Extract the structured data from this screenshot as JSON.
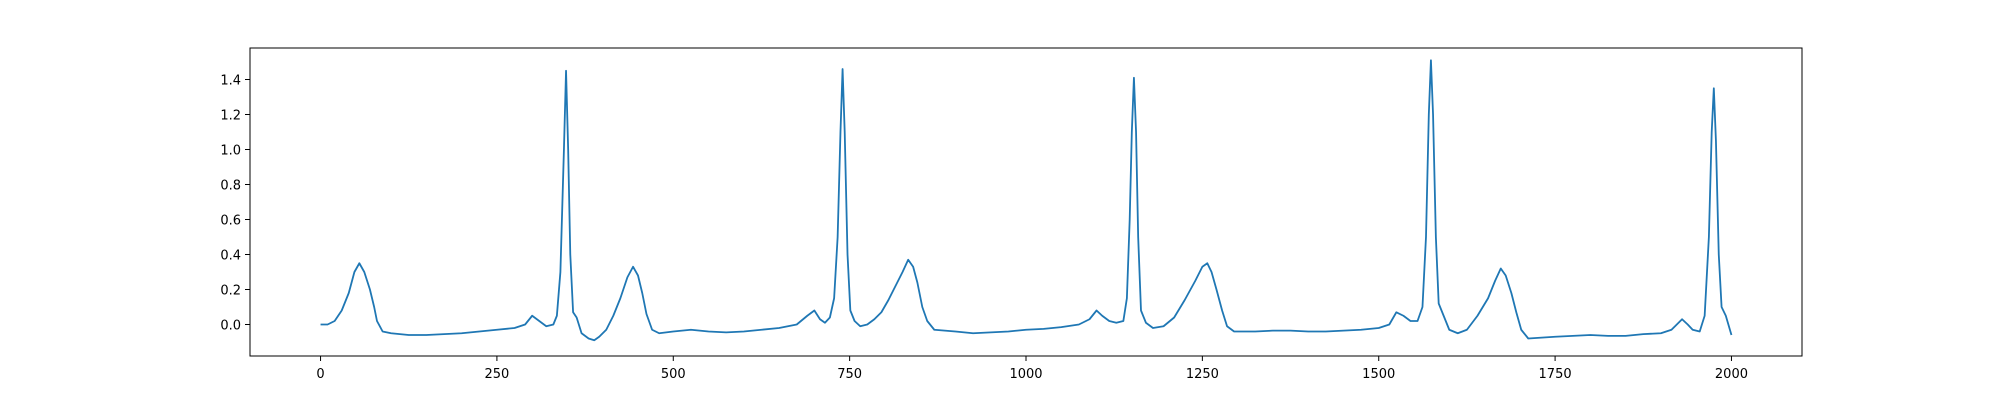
{
  "chart_data": {
    "type": "line",
    "title": "",
    "xlabel": "",
    "ylabel": "",
    "xlim": [
      -100,
      2100
    ],
    "ylim": [
      -0.18,
      1.58
    ],
    "grid": false,
    "legend": "none",
    "colors": {
      "line": "#1f77b4",
      "axes": "#000000",
      "background": "#ffffff"
    },
    "x_ticks": [
      {
        "value": 0,
        "label": "0"
      },
      {
        "value": 250,
        "label": "250"
      },
      {
        "value": 500,
        "label": "500"
      },
      {
        "value": 750,
        "label": "750"
      },
      {
        "value": 1000,
        "label": "1000"
      },
      {
        "value": 1250,
        "label": "1250"
      },
      {
        "value": 1500,
        "label": "1500"
      },
      {
        "value": 1750,
        "label": "1750"
      },
      {
        "value": 2000,
        "label": "2000"
      }
    ],
    "y_ticks": [
      {
        "value": 0.0,
        "label": "0.0"
      },
      {
        "value": 0.2,
        "label": "0.2"
      },
      {
        "value": 0.4,
        "label": "0.4"
      },
      {
        "value": 0.6,
        "label": "0.6"
      },
      {
        "value": 0.8,
        "label": "0.8"
      },
      {
        "value": 1.0,
        "label": "1.0"
      },
      {
        "value": 1.2,
        "label": "1.2"
      },
      {
        "value": 1.4,
        "label": "1.4"
      }
    ],
    "series": [
      {
        "points": [
          [
            0,
            0.0
          ],
          [
            10,
            0.0
          ],
          [
            20,
            0.02
          ],
          [
            30,
            0.08
          ],
          [
            40,
            0.18
          ],
          [
            48,
            0.3
          ],
          [
            55,
            0.35
          ],
          [
            62,
            0.3
          ],
          [
            70,
            0.2
          ],
          [
            76,
            0.1
          ],
          [
            80,
            0.02
          ],
          [
            88,
            -0.04
          ],
          [
            100,
            -0.05
          ],
          [
            125,
            -0.06
          ],
          [
            150,
            -0.06
          ],
          [
            175,
            -0.055
          ],
          [
            200,
            -0.05
          ],
          [
            225,
            -0.04
          ],
          [
            250,
            -0.03
          ],
          [
            275,
            -0.02
          ],
          [
            290,
            0.0
          ],
          [
            300,
            0.05
          ],
          [
            310,
            0.02
          ],
          [
            320,
            -0.01
          ],
          [
            330,
            0.0
          ],
          [
            335,
            0.05
          ],
          [
            340,
            0.3
          ],
          [
            345,
            1.0
          ],
          [
            348,
            1.45
          ],
          [
            351,
            1.0
          ],
          [
            354,
            0.4
          ],
          [
            358,
            0.07
          ],
          [
            363,
            0.04
          ],
          [
            370,
            -0.05
          ],
          [
            380,
            -0.08
          ],
          [
            388,
            -0.09
          ],
          [
            395,
            -0.07
          ],
          [
            405,
            -0.03
          ],
          [
            415,
            0.05
          ],
          [
            425,
            0.15
          ],
          [
            435,
            0.27
          ],
          [
            443,
            0.33
          ],
          [
            450,
            0.28
          ],
          [
            456,
            0.18
          ],
          [
            462,
            0.06
          ],
          [
            470,
            -0.03
          ],
          [
            480,
            -0.05
          ],
          [
            500,
            -0.04
          ],
          [
            525,
            -0.03
          ],
          [
            550,
            -0.04
          ],
          [
            575,
            -0.045
          ],
          [
            600,
            -0.04
          ],
          [
            625,
            -0.03
          ],
          [
            650,
            -0.02
          ],
          [
            675,
            0.0
          ],
          [
            690,
            0.05
          ],
          [
            700,
            0.08
          ],
          [
            708,
            0.03
          ],
          [
            715,
            0.01
          ],
          [
            722,
            0.04
          ],
          [
            728,
            0.15
          ],
          [
            733,
            0.5
          ],
          [
            737,
            1.1
          ],
          [
            740,
            1.46
          ],
          [
            743,
            1.1
          ],
          [
            747,
            0.4
          ],
          [
            751,
            0.08
          ],
          [
            757,
            0.02
          ],
          [
            765,
            -0.01
          ],
          [
            775,
            0.0
          ],
          [
            785,
            0.03
          ],
          [
            795,
            0.07
          ],
          [
            805,
            0.14
          ],
          [
            815,
            0.22
          ],
          [
            825,
            0.3
          ],
          [
            833,
            0.37
          ],
          [
            840,
            0.33
          ],
          [
            846,
            0.24
          ],
          [
            853,
            0.1
          ],
          [
            860,
            0.02
          ],
          [
            870,
            -0.03
          ],
          [
            900,
            -0.04
          ],
          [
            925,
            -0.05
          ],
          [
            950,
            -0.045
          ],
          [
            975,
            -0.04
          ],
          [
            1000,
            -0.03
          ],
          [
            1025,
            -0.025
          ],
          [
            1050,
            -0.015
          ],
          [
            1075,
            0.0
          ],
          [
            1090,
            0.03
          ],
          [
            1100,
            0.08
          ],
          [
            1108,
            0.05
          ],
          [
            1118,
            0.02
          ],
          [
            1128,
            0.01
          ],
          [
            1138,
            0.02
          ],
          [
            1143,
            0.15
          ],
          [
            1147,
            0.6
          ],
          [
            1150,
            1.1
          ],
          [
            1153,
            1.41
          ],
          [
            1156,
            1.1
          ],
          [
            1159,
            0.5
          ],
          [
            1163,
            0.08
          ],
          [
            1170,
            0.01
          ],
          [
            1180,
            -0.02
          ],
          [
            1195,
            -0.01
          ],
          [
            1210,
            0.04
          ],
          [
            1225,
            0.14
          ],
          [
            1240,
            0.25
          ],
          [
            1250,
            0.33
          ],
          [
            1257,
            0.35
          ],
          [
            1263,
            0.3
          ],
          [
            1270,
            0.2
          ],
          [
            1278,
            0.08
          ],
          [
            1285,
            -0.01
          ],
          [
            1295,
            -0.04
          ],
          [
            1325,
            -0.04
          ],
          [
            1350,
            -0.035
          ],
          [
            1375,
            -0.035
          ],
          [
            1400,
            -0.04
          ],
          [
            1425,
            -0.04
          ],
          [
            1450,
            -0.035
          ],
          [
            1475,
            -0.03
          ],
          [
            1500,
            -0.02
          ],
          [
            1515,
            0.0
          ],
          [
            1525,
            0.07
          ],
          [
            1535,
            0.05
          ],
          [
            1545,
            0.02
          ],
          [
            1555,
            0.02
          ],
          [
            1562,
            0.1
          ],
          [
            1567,
            0.5
          ],
          [
            1571,
            1.2
          ],
          [
            1574,
            1.51
          ],
          [
            1577,
            1.2
          ],
          [
            1581,
            0.5
          ],
          [
            1585,
            0.12
          ],
          [
            1592,
            0.05
          ],
          [
            1600,
            -0.03
          ],
          [
            1612,
            -0.05
          ],
          [
            1625,
            -0.03
          ],
          [
            1640,
            0.05
          ],
          [
            1655,
            0.15
          ],
          [
            1665,
            0.25
          ],
          [
            1673,
            0.32
          ],
          [
            1680,
            0.28
          ],
          [
            1688,
            0.18
          ],
          [
            1695,
            0.07
          ],
          [
            1702,
            -0.03
          ],
          [
            1712,
            -0.08
          ],
          [
            1750,
            -0.07
          ],
          [
            1775,
            -0.065
          ],
          [
            1800,
            -0.06
          ],
          [
            1825,
            -0.065
          ],
          [
            1850,
            -0.065
          ],
          [
            1875,
            -0.055
          ],
          [
            1900,
            -0.05
          ],
          [
            1915,
            -0.03
          ],
          [
            1930,
            0.03
          ],
          [
            1938,
            0.0
          ],
          [
            1945,
            -0.03
          ],
          [
            1955,
            -0.04
          ],
          [
            1962,
            0.05
          ],
          [
            1968,
            0.5
          ],
          [
            1972,
            1.1
          ],
          [
            1975,
            1.35
          ],
          [
            1978,
            1.05
          ],
          [
            1982,
            0.4
          ],
          [
            1986,
            0.1
          ],
          [
            1992,
            0.05
          ],
          [
            2000,
            -0.06
          ]
        ]
      }
    ]
  }
}
